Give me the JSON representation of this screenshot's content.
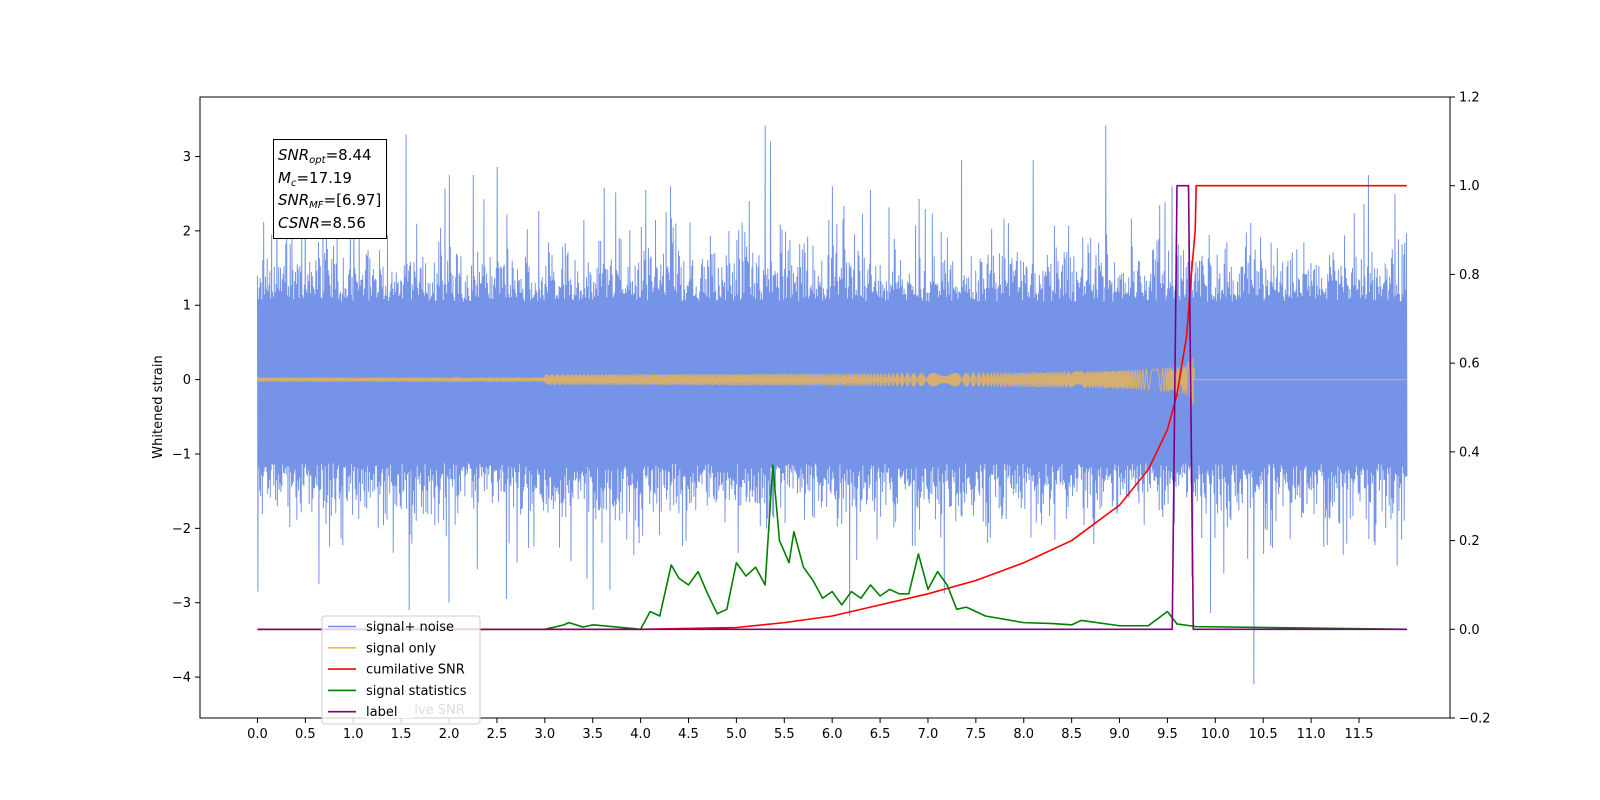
{
  "chart_data": {
    "type": "line",
    "title": "",
    "xlabel": "",
    "ylabel": "Whitened strain",
    "xlim": [
      -0.6,
      12.45
    ],
    "ylim": [
      -4.55,
      3.8
    ],
    "y2lim": [
      -0.2,
      1.2
    ],
    "x_ticks": [
      "0.0",
      "0.5",
      "1.0",
      "1.5",
      "2.0",
      "2.5",
      "3.0",
      "3.5",
      "4.0",
      "4.5",
      "5.0",
      "5.5",
      "6.0",
      "6.5",
      "7.0",
      "7.5",
      "8.0",
      "8.5",
      "9.0",
      "9.5",
      "10.0",
      "10.5",
      "11.0",
      "11.5"
    ],
    "y_ticks": [
      "3",
      "2",
      "1",
      "0",
      "−1",
      "−2",
      "−3",
      "−4"
    ],
    "y2_ticks": [
      "1.2",
      "1.0",
      "0.8",
      "0.6",
      "0.4",
      "0.2",
      "0.0",
      "−0.2"
    ],
    "grid": false,
    "legend_position": "lower-left",
    "legend": [
      {
        "label": "signal+ noise",
        "color": "#6f8ee6"
      },
      {
        "label": "signal only",
        "color": "#f5b84a"
      },
      {
        "label": "cumilative SNR",
        "color": "#ff0000"
      },
      {
        "label": "signal statistics",
        "color": "#008000"
      },
      {
        "label": "label",
        "color": "#800080"
      }
    ],
    "legend_ghost_text": "cumilative SNR",
    "annotation": {
      "snr_opt": "8.44",
      "mc": "17.19",
      "snr_mf": "[6.97]",
      "csnr": "8.56"
    },
    "series": [
      {
        "name": "signal+ noise",
        "axis": "left",
        "color": "#6f8ee6",
        "x_range": [
          0.0,
          12.0
        ],
        "typical_amplitude": [
          -1.5,
          1.4
        ],
        "spikes": [
          {
            "x": 0.0,
            "y": -2.85
          },
          {
            "x": 0.2,
            "y": 2.65
          },
          {
            "x": 0.5,
            "y": 2.45
          },
          {
            "x": 1.0,
            "y": 2.7
          },
          {
            "x": 1.55,
            "y": 3.3
          },
          {
            "x": 1.58,
            "y": -3.1
          },
          {
            "x": 2.0,
            "y": 2.75
          },
          {
            "x": 2.0,
            "y": -3.0
          },
          {
            "x": 2.25,
            "y": 2.75
          },
          {
            "x": 2.6,
            "y": -2.95
          },
          {
            "x": 3.5,
            "y": -3.1
          },
          {
            "x": 4.05,
            "y": 2.55
          },
          {
            "x": 5.3,
            "y": 3.42
          },
          {
            "x": 5.35,
            "y": 3.2
          },
          {
            "x": 6.0,
            "y": 2.6
          },
          {
            "x": 6.4,
            "y": 2.55
          },
          {
            "x": 7.35,
            "y": 2.95
          },
          {
            "x": 8.1,
            "y": 2.95
          },
          {
            "x": 8.85,
            "y": 3.42
          },
          {
            "x": 9.55,
            "y": 2.6
          },
          {
            "x": 9.75,
            "y": -2.65
          },
          {
            "x": 10.4,
            "y": -4.1
          },
          {
            "x": 11.6,
            "y": 2.75
          },
          {
            "x": 11.9,
            "y": -2.5
          }
        ]
      },
      {
        "name": "signal only",
        "axis": "left",
        "color": "#f5b84a",
        "x_range": [
          0.0,
          12.0
        ],
        "chirp_merger_x": 9.78,
        "peak_amplitude": 0.35
      },
      {
        "name": "cumilative SNR",
        "axis": "right",
        "color": "#ff0000",
        "x": [
          0.0,
          4.0,
          5.0,
          5.5,
          6.0,
          6.5,
          7.0,
          7.5,
          8.0,
          8.5,
          9.0,
          9.3,
          9.5,
          9.6,
          9.7,
          9.75,
          9.79,
          9.8,
          12.0
        ],
        "y": [
          0.0,
          0.0,
          0.004,
          0.015,
          0.03,
          0.055,
          0.08,
          0.11,
          0.15,
          0.2,
          0.28,
          0.36,
          0.45,
          0.53,
          0.66,
          0.8,
          0.9,
          1.0,
          1.0
        ]
      },
      {
        "name": "signal statistics",
        "axis": "right",
        "color": "#008000",
        "x": [
          0.0,
          3.0,
          3.2,
          3.25,
          3.4,
          3.5,
          4.0,
          4.1,
          4.2,
          4.32,
          4.4,
          4.5,
          4.6,
          4.7,
          4.8,
          4.9,
          5.0,
          5.1,
          5.2,
          5.3,
          5.38,
          5.45,
          5.55,
          5.6,
          5.7,
          5.8,
          5.9,
          6.0,
          6.1,
          6.2,
          6.3,
          6.4,
          6.5,
          6.6,
          6.7,
          6.8,
          6.9,
          7.0,
          7.1,
          7.2,
          7.3,
          7.4,
          7.6,
          8.0,
          8.3,
          8.5,
          8.6,
          9.0,
          9.3,
          9.5,
          9.6,
          9.8,
          12.0
        ],
        "y": [
          0.0,
          0.0,
          0.01,
          0.015,
          0.005,
          0.01,
          0.0,
          0.04,
          0.03,
          0.145,
          0.115,
          0.1,
          0.13,
          0.08,
          0.035,
          0.045,
          0.15,
          0.12,
          0.14,
          0.1,
          0.37,
          0.2,
          0.15,
          0.22,
          0.14,
          0.11,
          0.07,
          0.085,
          0.055,
          0.085,
          0.07,
          0.1,
          0.075,
          0.09,
          0.08,
          0.08,
          0.17,
          0.09,
          0.13,
          0.1,
          0.045,
          0.05,
          0.03,
          0.015,
          0.013,
          0.01,
          0.02,
          0.008,
          0.008,
          0.04,
          0.012,
          0.006,
          0.0
        ]
      },
      {
        "name": "label",
        "axis": "right",
        "color": "#800080",
        "x": [
          0.0,
          9.55,
          9.6,
          9.72,
          9.77,
          12.0
        ],
        "y": [
          0.0,
          0.0,
          1.0,
          1.0,
          0.0,
          0.0
        ]
      }
    ]
  }
}
